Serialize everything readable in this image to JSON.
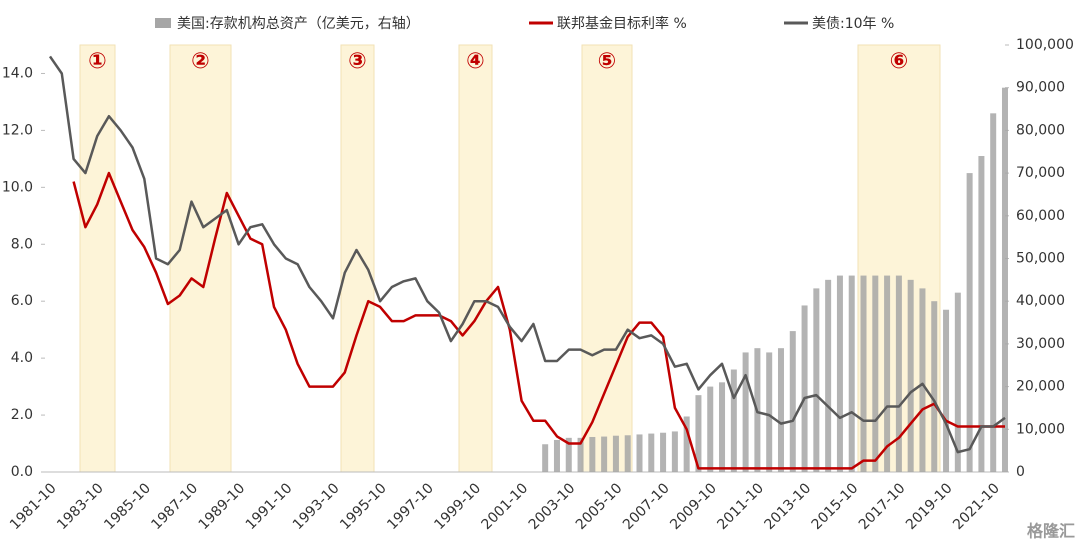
{
  "chart_data": {
    "type": "combo",
    "legend": "top",
    "annotations": [
      "①",
      "②",
      "③",
      "④",
      "⑤",
      "⑥"
    ],
    "watermark": "格隆汇",
    "categories": [
      "1981-10",
      null,
      null,
      null,
      "1983-10",
      null,
      null,
      null,
      "1985-10",
      null,
      null,
      null,
      "1987-10",
      null,
      null,
      null,
      "1989-10",
      null,
      null,
      null,
      "1991-10",
      null,
      null,
      null,
      "1993-10",
      null,
      null,
      null,
      "1995-10",
      null,
      null,
      null,
      "1997-10",
      null,
      null,
      null,
      "1999-10",
      null,
      null,
      null,
      "2001-10",
      null,
      null,
      null,
      "2003-10",
      null,
      null,
      null,
      "2005-10",
      null,
      null,
      null,
      "2007-10",
      null,
      null,
      null,
      "2009-10",
      null,
      null,
      null,
      "2011-10",
      null,
      null,
      null,
      "2013-10",
      null,
      null,
      null,
      "2015-10",
      null,
      null,
      null,
      "2017-10",
      null,
      null,
      null,
      "2019-10",
      null,
      null,
      null,
      "2021-10",
      null
    ],
    "ylim": [
      0,
      15
    ],
    "yticks": [
      {
        "value": 0,
        "label": "0.0"
      },
      {
        "value": 2,
        "label": "2.0"
      },
      {
        "value": 4,
        "label": "4.0"
      },
      {
        "value": 6,
        "label": "6.0"
      },
      {
        "value": 8,
        "label": "8.0"
      },
      {
        "value": 10,
        "label": "10.0"
      },
      {
        "value": 12,
        "label": "12.0"
      },
      {
        "value": 14,
        "label": "14.0"
      }
    ],
    "y2lim": [
      0,
      100000
    ],
    "y2ticks": [
      0,
      {
        "value": 10000,
        "label": "10,000"
      },
      {
        "value": 20000,
        "label": "20,000"
      },
      {
        "value": 30000,
        "label": "30,000"
      },
      {
        "value": 40000,
        "label": "40,000"
      },
      {
        "value": 50000,
        "label": "50,000"
      },
      {
        "value": 60000,
        "label": "60,000"
      },
      {
        "value": 70000,
        "label": "70,000"
      },
      {
        "value": 80000,
        "label": "80,000"
      },
      {
        "value": 90000,
        "label": "90,000"
      },
      {
        "value": 100000,
        "label": "100,000"
      }
    ],
    "series": [
      {
        "name": "美国:存款机构总资产（亿美元，右轴）",
        "type": "bar",
        "axis": "y2",
        "color": "#a6a6a6",
        "values": [
          null,
          null,
          null,
          null,
          null,
          null,
          null,
          null,
          null,
          null,
          null,
          null,
          null,
          null,
          null,
          null,
          null,
          null,
          null,
          null,
          null,
          null,
          null,
          null,
          null,
          null,
          null,
          null,
          null,
          null,
          null,
          null,
          null,
          null,
          null,
          null,
          null,
          null,
          null,
          null,
          null,
          null,
          6500,
          7500,
          8000,
          8000,
          8200,
          8300,
          8500,
          8600,
          8800,
          9000,
          9200,
          9500,
          13000,
          18000,
          20000,
          21000,
          24000,
          28000,
          29000,
          28000,
          29000,
          33000,
          39000,
          43000,
          45000,
          46000,
          46000,
          46000,
          46000,
          46000,
          46000,
          45000,
          43000,
          40000,
          38000,
          42000,
          70000,
          74000,
          84000,
          90000
        ]
      },
      {
        "name": "联邦基金目标利率 %",
        "type": "line",
        "color": "#c00000",
        "values": [
          null,
          null,
          10.2,
          8.6,
          9.4,
          10.5,
          9.5,
          8.5,
          7.9,
          7.0,
          5.9,
          6.2,
          6.8,
          6.5,
          8.2,
          9.8,
          9.0,
          8.2,
          8.0,
          5.8,
          5.0,
          3.8,
          3.0,
          3.0,
          3.0,
          3.5,
          4.8,
          6.0,
          5.8,
          5.3,
          5.3,
          5.5,
          5.5,
          5.5,
          5.3,
          4.8,
          5.3,
          6.0,
          6.5,
          5.0,
          2.5,
          1.8,
          1.8,
          1.25,
          1.0,
          1.0,
          1.75,
          2.75,
          3.75,
          4.75,
          5.25,
          5.25,
          4.75,
          2.25,
          1.5,
          0.125,
          0.125,
          0.125,
          0.125,
          0.125,
          0.125,
          0.125,
          0.125,
          0.125,
          0.125,
          0.125,
          0.125,
          0.125,
          0.125,
          0.4,
          0.4,
          0.9,
          1.2,
          1.7,
          2.2,
          2.4,
          1.8,
          1.6,
          1.6,
          1.6,
          1.6,
          1.6
        ]
      },
      {
        "name": "美债:10年 %",
        "type": "line",
        "color": "#595959",
        "values": [
          14.6,
          14.0,
          11.0,
          10.5,
          11.8,
          12.5,
          12.0,
          11.4,
          10.3,
          7.5,
          7.3,
          7.8,
          9.5,
          8.6,
          8.9,
          9.2,
          8.0,
          8.6,
          8.7,
          8.0,
          7.5,
          7.3,
          6.5,
          6.0,
          5.4,
          7.0,
          7.8,
          7.1,
          6.0,
          6.5,
          6.7,
          6.8,
          6.0,
          5.6,
          4.6,
          5.2,
          6.0,
          6.0,
          5.8,
          5.1,
          4.6,
          5.2,
          3.9,
          3.9,
          4.3,
          4.3,
          4.1,
          4.3,
          4.3,
          5.0,
          4.7,
          4.8,
          4.5,
          3.7,
          3.8,
          2.9,
          3.4,
          3.8,
          2.6,
          3.4,
          2.1,
          2.0,
          1.7,
          1.8,
          2.6,
          2.7,
          2.3,
          1.9,
          2.1,
          1.8,
          1.8,
          2.3,
          2.3,
          2.8,
          3.1,
          2.5,
          1.7,
          0.7,
          0.8,
          1.6,
          1.6,
          1.9
        ]
      }
    ]
  }
}
